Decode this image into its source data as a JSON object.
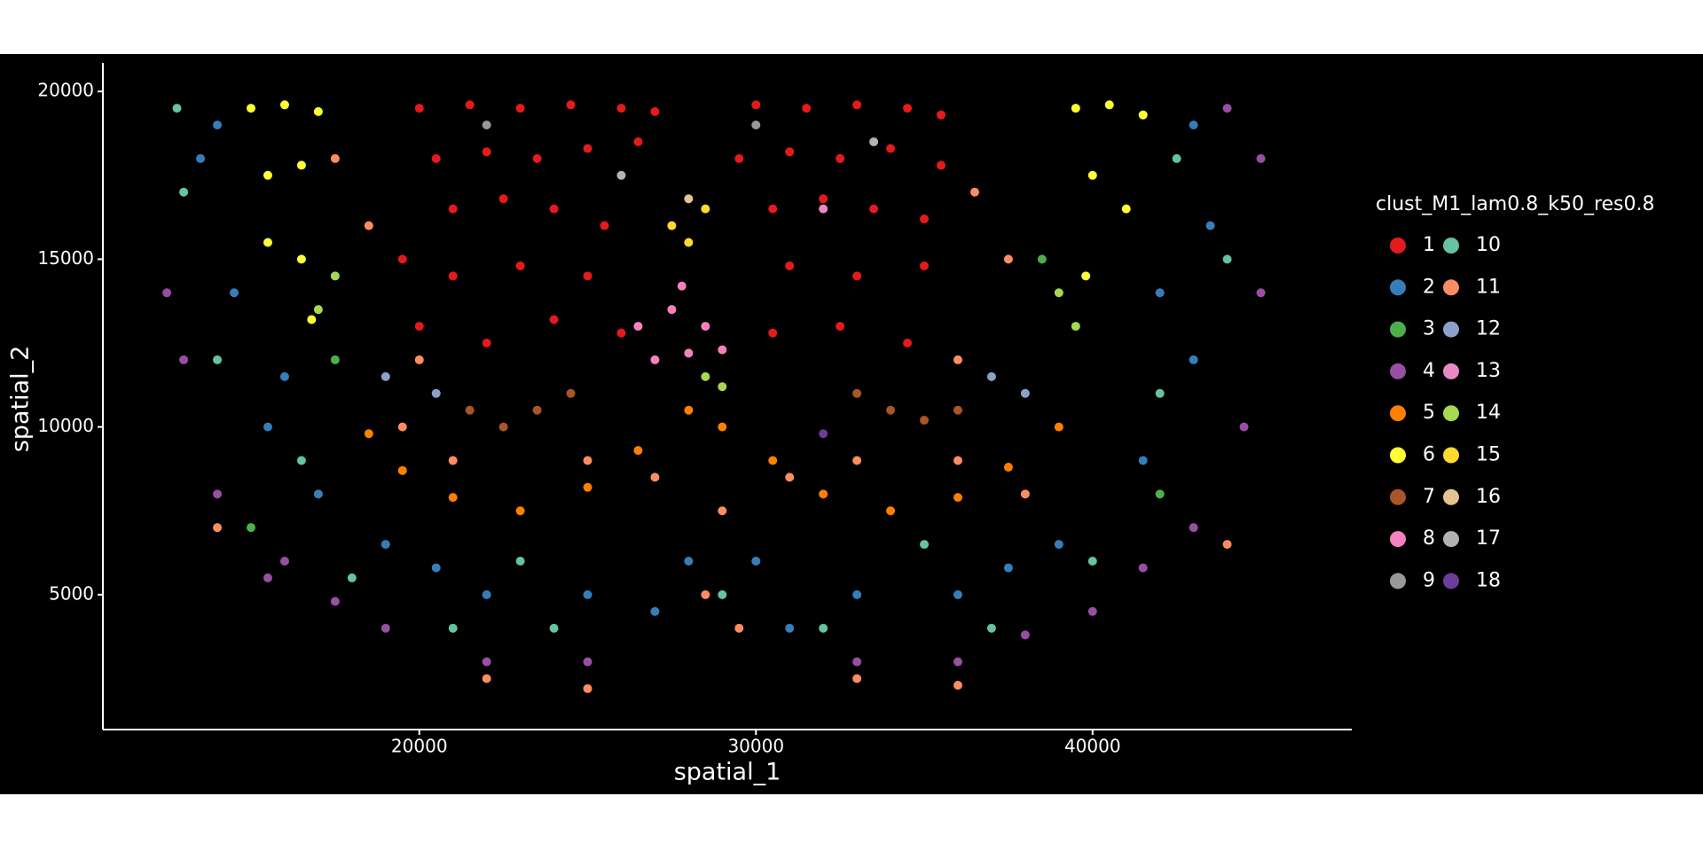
{
  "chart_data": {
    "type": "scatter",
    "x_label": "spatial_1",
    "y_label": "spatial_2",
    "legend_title": "clust_M1_lam0.8_k50_res0.8",
    "xlim": [
      10600,
      47700
    ],
    "ylim": [
      980,
      20850
    ],
    "xticks": [
      20000,
      30000,
      40000
    ],
    "yticks": [
      5000,
      10000,
      15000,
      20000
    ],
    "grid": false,
    "legend": "right",
    "series": [
      {
        "name": "1",
        "color": "#E41A1C",
        "x": [
          20000,
          21500,
          23000,
          24500,
          26000,
          27000,
          30000,
          31500,
          33000,
          34500,
          35500,
          20500,
          22000,
          23500,
          25000,
          26500,
          29500,
          31000,
          32500,
          34000,
          35500,
          21000,
          22500,
          24000,
          25500,
          30500,
          32000,
          33500,
          35000,
          19500,
          21000,
          23000,
          25000,
          31000,
          33000,
          35000,
          20000,
          22000,
          24000,
          26000,
          30500,
          32500,
          34500
        ],
        "y": [
          19500,
          19600,
          19500,
          19600,
          19500,
          19400,
          19600,
          19500,
          19600,
          19500,
          19300,
          18000,
          18200,
          18000,
          18300,
          18500,
          18000,
          18200,
          18000,
          18300,
          17800,
          16500,
          16800,
          16500,
          16000,
          16500,
          16800,
          16500,
          16200,
          15000,
          14500,
          14800,
          14500,
          14800,
          14500,
          14800,
          13000,
          12500,
          13200,
          12800,
          12800,
          13000,
          12500
        ]
      },
      {
        "name": "2",
        "color": "#377EB8",
        "x": [
          13500,
          14500,
          15500,
          17000,
          19000,
          22000,
          25000,
          28000,
          30000,
          33000,
          36000,
          39000,
          41500,
          43000,
          43500,
          43000,
          14000,
          27000,
          31000,
          16000,
          20500,
          37500,
          42000
        ],
        "y": [
          18000,
          14000,
          10000,
          8000,
          6500,
          5000,
          5000,
          6000,
          6000,
          5000,
          5000,
          6500,
          9000,
          12000,
          16000,
          19000,
          19000,
          4500,
          4000,
          11500,
          5800,
          5800,
          14000
        ]
      },
      {
        "name": "3",
        "color": "#4DAF4A",
        "x": [
          17500,
          15000,
          42000,
          38500
        ],
        "y": [
          12000,
          7000,
          8000,
          15000
        ]
      },
      {
        "name": "4",
        "color": "#984EA3",
        "x": [
          13000,
          14000,
          16000,
          19000,
          22000,
          25000,
          33000,
          36000,
          40000,
          43000,
          44500,
          45000,
          45000,
          44000,
          12500,
          15500,
          17500,
          38000,
          41500
        ],
        "y": [
          12000,
          8000,
          6000,
          4000,
          3000,
          3000,
          3000,
          3000,
          4500,
          7000,
          10000,
          14000,
          18000,
          19500,
          14000,
          5500,
          4800,
          3800,
          5800
        ]
      },
      {
        "name": "5",
        "color": "#FF7F00",
        "x": [
          18500,
          19500,
          21000,
          23000,
          25000,
          26500,
          28000,
          29000,
          30500,
          32000,
          34000,
          36000,
          37500,
          39000
        ],
        "y": [
          9800,
          8700,
          7900,
          7500,
          8200,
          9300,
          10500,
          10000,
          9000,
          8000,
          7500,
          7900,
          8800,
          10000
        ]
      },
      {
        "name": "6",
        "color": "#FFFF33",
        "x": [
          15000,
          16000,
          17000,
          15500,
          16500,
          15500,
          16500,
          16800,
          39500,
          40500,
          41500,
          40000,
          41000,
          39800
        ],
        "y": [
          19500,
          19600,
          19400,
          17500,
          17800,
          15500,
          15000,
          13200,
          19500,
          19600,
          19300,
          17500,
          16500,
          14500
        ]
      },
      {
        "name": "7",
        "color": "#A65628",
        "x": [
          21500,
          22500,
          23500,
          24500,
          33000,
          34000,
          35000,
          36000
        ],
        "y": [
          10500,
          10000,
          10500,
          11000,
          11000,
          10500,
          10200,
          10500
        ]
      },
      {
        "name": "8",
        "color": "#F781BF",
        "x": [
          26500,
          27500,
          28500,
          27000,
          28000,
          29000,
          27800
        ],
        "y": [
          13000,
          13500,
          13000,
          12000,
          12200,
          12300,
          14200
        ]
      },
      {
        "name": "9",
        "color": "#999999",
        "x": [
          30000,
          22000
        ],
        "y": [
          19000,
          19000
        ]
      },
      {
        "name": "10",
        "color": "#66C2A5",
        "x": [
          13000,
          14000,
          16500,
          18000,
          21000,
          24000,
          29000,
          32000,
          37000,
          40000,
          42000,
          44000,
          42500,
          12800,
          23000,
          35000
        ],
        "y": [
          17000,
          12000,
          9000,
          5500,
          4000,
          4000,
          5000,
          4000,
          4000,
          6000,
          11000,
          15000,
          18000,
          19500,
          6000,
          6500
        ]
      },
      {
        "name": "11",
        "color": "#FC8D62",
        "x": [
          19500,
          21000,
          25000,
          27000,
          29000,
          31000,
          33000,
          36000,
          38000,
          18500,
          17500,
          36500,
          37500,
          22000,
          25000,
          33000,
          36000,
          14000,
          44000,
          20000,
          36000,
          28500,
          29500
        ],
        "y": [
          10000,
          9000,
          9000,
          8500,
          7500,
          8500,
          9000,
          9000,
          8000,
          16000,
          18000,
          17000,
          15000,
          2500,
          2200,
          2500,
          2300,
          7000,
          6500,
          12000,
          12000,
          5000,
          4000
        ]
      },
      {
        "name": "12",
        "color": "#8DA0CB",
        "x": [
          19000,
          20500,
          37000,
          38000
        ],
        "y": [
          11500,
          11000,
          11500,
          11000
        ]
      },
      {
        "name": "13",
        "color": "#E78AC3",
        "x": [
          32000
        ],
        "y": [
          16500
        ]
      },
      {
        "name": "14",
        "color": "#A6D854",
        "x": [
          28500,
          29000,
          17000,
          17500,
          39000,
          39500
        ],
        "y": [
          11500,
          11200,
          13500,
          14500,
          14000,
          13000
        ]
      },
      {
        "name": "15",
        "color": "#FFD92F",
        "x": [
          27500,
          28000,
          28500
        ],
        "y": [
          16000,
          15500,
          16500
        ]
      },
      {
        "name": "16",
        "color": "#E5C494",
        "x": [
          28000
        ],
        "y": [
          16800
        ]
      },
      {
        "name": "17",
        "color": "#B3B3B3",
        "x": [
          26000,
          33500
        ],
        "y": [
          17500,
          18500
        ]
      },
      {
        "name": "18",
        "color": "#6A3D9A",
        "x": [
          32000
        ],
        "y": [
          9800
        ]
      }
    ]
  }
}
